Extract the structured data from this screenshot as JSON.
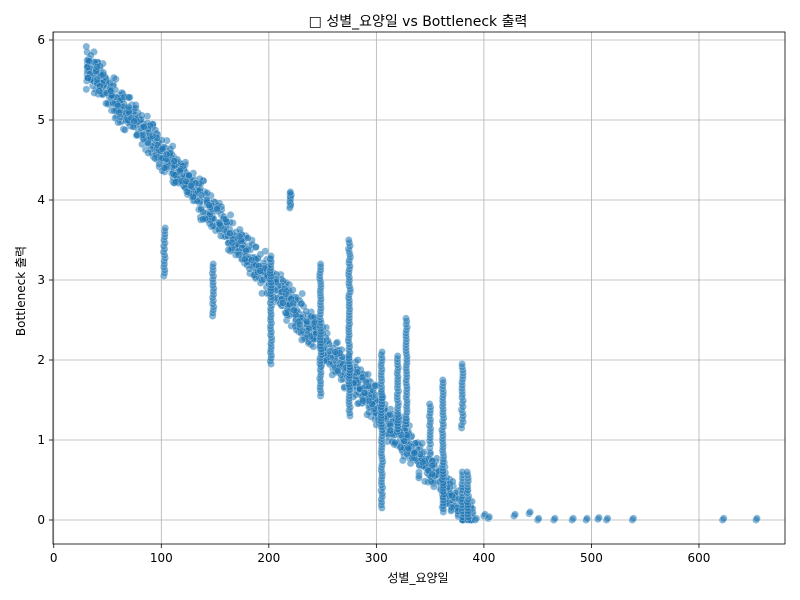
{
  "chart_data": {
    "type": "scatter",
    "title": "□ 성별_요양일 vs Bottleneck 출력",
    "xlabel": "성별_요양일",
    "ylabel": "Bottleneck 출력",
    "xlim": [
      -0.7,
      680
    ],
    "ylim": [
      -0.3,
      6.1
    ],
    "xticks": [
      0,
      100,
      200,
      300,
      400,
      500,
      600
    ],
    "yticks": [
      0,
      1,
      2,
      3,
      4,
      5,
      6
    ],
    "xtick_labels": [
      "0",
      "100",
      "200",
      "300",
      "400",
      "500",
      "600"
    ],
    "ytick_labels": [
      "0",
      "1",
      "2",
      "3",
      "4",
      "5",
      "6"
    ],
    "grid": true,
    "point_color": "#1f77b4",
    "point_alpha": 0.55,
    "trend": {
      "description": "dense negative linear band",
      "x_start": 30,
      "y_start": 5.7,
      "x_end": 390,
      "y_end": 0.0,
      "spread": 0.35
    },
    "vertical_clusters": [
      {
        "x": 103,
        "y_min": 3.05,
        "y_max": 3.65
      },
      {
        "x": 148,
        "y_min": 2.55,
        "y_max": 3.2
      },
      {
        "x": 202,
        "y_min": 1.95,
        "y_max": 3.3
      },
      {
        "x": 220,
        "y_min": 3.9,
        "y_max": 4.1
      },
      {
        "x": 248,
        "y_min": 1.55,
        "y_max": 3.2
      },
      {
        "x": 275,
        "y_min": 1.3,
        "y_max": 3.5
      },
      {
        "x": 305,
        "y_min": 0.15,
        "y_max": 2.1
      },
      {
        "x": 320,
        "y_min": 1.1,
        "y_max": 2.05
      },
      {
        "x": 328,
        "y_min": 1.2,
        "y_max": 2.52
      },
      {
        "x": 350,
        "y_min": 0.95,
        "y_max": 1.45
      },
      {
        "x": 362,
        "y_min": 0.1,
        "y_max": 1.75
      },
      {
        "x": 380,
        "y_min": 1.15,
        "y_max": 1.95
      },
      {
        "x": 380,
        "y_min": 0.0,
        "y_max": 0.6
      },
      {
        "x": 385,
        "y_min": 0.0,
        "y_max": 0.6
      }
    ],
    "tail_points": [
      {
        "x": 392,
        "y": 0.0
      },
      {
        "x": 400,
        "y": 0.05
      },
      {
        "x": 404,
        "y": 0.02
      },
      {
        "x": 428,
        "y": 0.05
      },
      {
        "x": 442,
        "y": 0.08
      },
      {
        "x": 450,
        "y": 0.0
      },
      {
        "x": 465,
        "y": 0.0
      },
      {
        "x": 482,
        "y": 0.0
      },
      {
        "x": 495,
        "y": 0.0
      },
      {
        "x": 506,
        "y": 0.01
      },
      {
        "x": 514,
        "y": 0.0
      },
      {
        "x": 538,
        "y": 0.0
      },
      {
        "x": 622,
        "y": 0.0
      },
      {
        "x": 653,
        "y": 0.0
      }
    ]
  }
}
